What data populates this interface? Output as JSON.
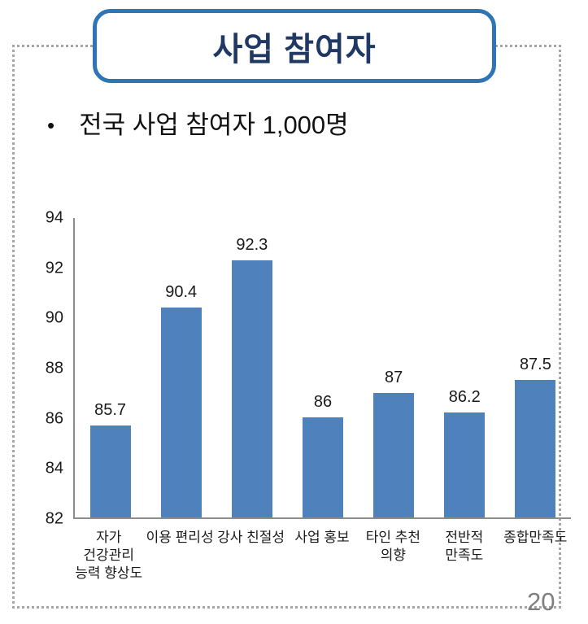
{
  "slide": {
    "title": "사업 참여자",
    "bullet": "전국 사업 참여자 1,000명",
    "page_number": "20"
  },
  "colors": {
    "bar": "#4F81BD",
    "title_border": "#2E75B6",
    "title_text": "#1F3864",
    "axis_line": "#8C8C8C",
    "border_dots": "#A6A6A6",
    "page_number": "#808080"
  },
  "chart_data": {
    "type": "bar",
    "title": "",
    "xlabel": "",
    "ylabel": "",
    "categories": [
      "자가\n건강관리\n능력 향상도",
      "이용 편리성",
      "강사 친절성",
      "사업 홍보",
      "타인 추천\n의향",
      "전반적\n만족도",
      "종합만족도"
    ],
    "values": [
      85.7,
      90.4,
      92.3,
      86,
      87,
      86.2,
      87.5
    ],
    "data_labels": [
      "85.7",
      "90.4",
      "92.3",
      "86",
      "87",
      "86.2",
      "87.5"
    ],
    "y_ticks": [
      82,
      84,
      86,
      88,
      90,
      92,
      94
    ],
    "ylim": [
      82,
      94
    ],
    "grid": false,
    "legend_position": "none",
    "bar_color": "#4F81BD"
  }
}
